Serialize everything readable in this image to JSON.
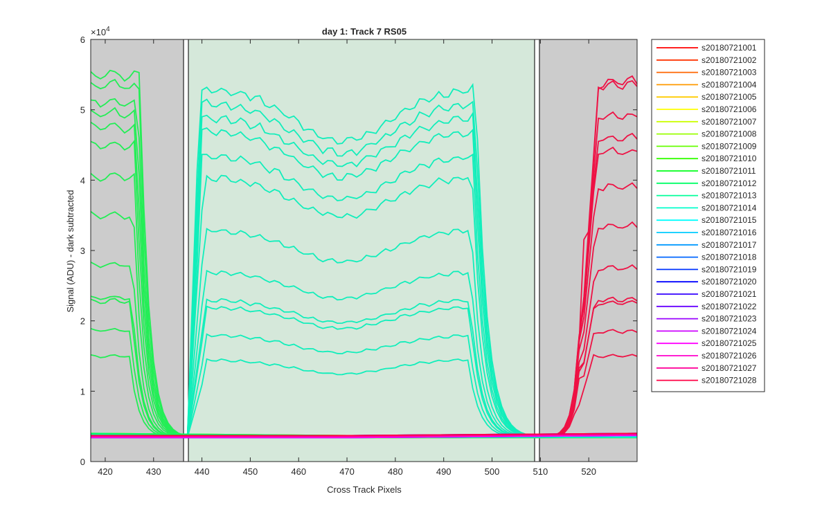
{
  "chart_data": {
    "type": "line",
    "title": "day 1: Track 7  RS05",
    "xlabel": "Cross Track Pixels",
    "ylabel": "Signal (ADU) - dark subtracted",
    "xlim": [
      417,
      530
    ],
    "ylim": [
      0,
      60000
    ],
    "y_exponent_label": "×10",
    "y_exponent_power": "4",
    "x_ticks": [
      420,
      430,
      440,
      450,
      460,
      470,
      480,
      490,
      500,
      510,
      520
    ],
    "y_ticks": [
      0,
      1,
      2,
      3,
      4,
      5,
      6
    ],
    "grid": false,
    "legend_position": "outside-right",
    "regions": [
      {
        "kind": "masked",
        "x0": 417,
        "x1": 436.2,
        "color": "#cccccc"
      },
      {
        "kind": "active",
        "x0": 437.2,
        "x1": 508.8,
        "color": "#d5e8da"
      },
      {
        "kind": "masked",
        "x0": 509.8,
        "x1": 530,
        "color": "#cccccc"
      }
    ],
    "boundary_lines": [
      436.2,
      437.2,
      508.8,
      509.8
    ],
    "baseline_level": 3400,
    "left_block_levels": [
      15000,
      18700,
      22800,
      23300,
      28000,
      35000,
      40500,
      45000,
      47500,
      49500,
      51000,
      53500,
      55000
    ],
    "middle_block_levels": [
      14500,
      18000,
      22000,
      23000,
      27000,
      33000,
      40500,
      43500,
      47000,
      49000,
      51000,
      53000
    ],
    "right_block_levels": [
      15000,
      18500,
      22500,
      23000,
      27500,
      33500,
      39000,
      44000,
      46000,
      49000,
      53500,
      54000
    ],
    "series": [
      {
        "name": "s20180721001",
        "color": "#ff0000"
      },
      {
        "name": "s20180721002",
        "color": "#ff3300"
      },
      {
        "name": "s20180721003",
        "color": "#ff6600"
      },
      {
        "name": "s20180721004",
        "color": "#ff9900"
      },
      {
        "name": "s20180721005",
        "color": "#ffcc00"
      },
      {
        "name": "s20180721006",
        "color": "#ffff00"
      },
      {
        "name": "s20180721007",
        "color": "#ccff00"
      },
      {
        "name": "s20180721008",
        "color": "#99ff00"
      },
      {
        "name": "s20180721009",
        "color": "#66ff00"
      },
      {
        "name": "s20180721010",
        "color": "#33ff00"
      },
      {
        "name": "s20180721011",
        "color": "#00ff19"
      },
      {
        "name": "s20180721012",
        "color": "#00ff66"
      },
      {
        "name": "s20180721013",
        "color": "#00ff99"
      },
      {
        "name": "s20180721014",
        "color": "#00ffcc"
      },
      {
        "name": "s20180721015",
        "color": "#00ffff"
      },
      {
        "name": "s20180721016",
        "color": "#00ccff"
      },
      {
        "name": "s20180721017",
        "color": "#0099ff"
      },
      {
        "name": "s20180721018",
        "color": "#0066ff"
      },
      {
        "name": "s20180721019",
        "color": "#0033ff"
      },
      {
        "name": "s20180721020",
        "color": "#0000ff"
      },
      {
        "name": "s20180721021",
        "color": "#3300ff"
      },
      {
        "name": "s20180721022",
        "color": "#6600ff"
      },
      {
        "name": "s20180721023",
        "color": "#9900ff"
      },
      {
        "name": "s20180721024",
        "color": "#cc00ff"
      },
      {
        "name": "s20180721025",
        "color": "#ff00ff"
      },
      {
        "name": "s20180721026",
        "color": "#ff00cc"
      },
      {
        "name": "s20180721027",
        "color": "#ff0099"
      },
      {
        "name": "s20180721028",
        "color": "#ff0044"
      }
    ],
    "left_block_color": "#22ee55",
    "middle_block_color": "#11eebb",
    "right_block_color": "#ee1144"
  }
}
